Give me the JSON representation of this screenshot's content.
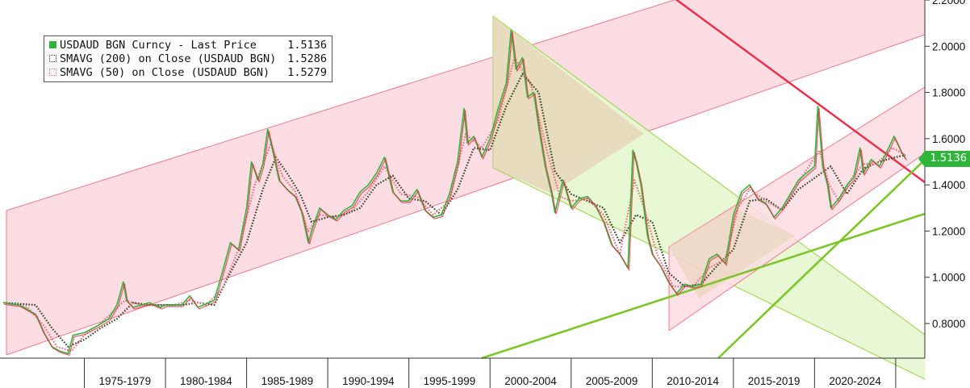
{
  "chart_data": {
    "type": "line",
    "title": "",
    "xlabel": "",
    "ylabel": "",
    "x_range": [
      1970.0,
      2026.0
    ],
    "ylim": [
      0.65,
      2.2
    ],
    "y_ticks": [
      2.2,
      2.0,
      1.8,
      1.6,
      1.4,
      1.2,
      1.0,
      0.8
    ],
    "y_tick_labels": [
      "2.2000",
      "2.0000",
      "1.8000",
      "1.6000",
      "1.4000",
      "1.2000",
      "1.0000",
      "0.8000"
    ],
    "x_tick_labels": [
      "1975-1979",
      "1980-1984",
      "1985-1989",
      "1990-1994",
      "1995-1999",
      "2000-2004",
      "2005-2009",
      "2010-2014",
      "2015-2019",
      "2020-2024"
    ],
    "x_tick_starts": [
      1975,
      1980,
      1985,
      1990,
      1995,
      2000,
      2005,
      2010,
      2015,
      2020,
      2025
    ],
    "grid": false,
    "legend_position": "top-left",
    "series": [
      {
        "name": "USDAUD BGN Curncy - Last Price",
        "last_value": "1.5136",
        "color": "#2fb53a",
        "points": [
          [
            1970.0,
            0.89
          ],
          [
            1971.0,
            0.88
          ],
          [
            1972.0,
            0.84
          ],
          [
            1972.5,
            0.76
          ],
          [
            1973.0,
            0.7
          ],
          [
            1973.5,
            0.68
          ],
          [
            1974.0,
            0.67
          ],
          [
            1974.3,
            0.75
          ],
          [
            1975.0,
            0.76
          ],
          [
            1975.8,
            0.79
          ],
          [
            1976.5,
            0.82
          ],
          [
            1977.0,
            0.88
          ],
          [
            1977.4,
            0.98
          ],
          [
            1977.6,
            0.9
          ],
          [
            1978.0,
            0.87
          ],
          [
            1979.0,
            0.89
          ],
          [
            1979.7,
            0.87
          ],
          [
            1980.0,
            0.88
          ],
          [
            1981.0,
            0.88
          ],
          [
            1981.5,
            0.92
          ],
          [
            1982.0,
            0.87
          ],
          [
            1983.0,
            0.9
          ],
          [
            1983.5,
            1.02
          ],
          [
            1984.0,
            1.15
          ],
          [
            1984.5,
            1.12
          ],
          [
            1985.0,
            1.3
          ],
          [
            1985.3,
            1.5
          ],
          [
            1985.7,
            1.42
          ],
          [
            1986.0,
            1.49
          ],
          [
            1986.3,
            1.64
          ],
          [
            1986.6,
            1.55
          ],
          [
            1987.0,
            1.42
          ],
          [
            1987.5,
            1.38
          ],
          [
            1988.0,
            1.35
          ],
          [
            1988.4,
            1.28
          ],
          [
            1988.8,
            1.15
          ],
          [
            1989.0,
            1.2
          ],
          [
            1989.5,
            1.3
          ],
          [
            1990.0,
            1.27
          ],
          [
            1990.5,
            1.25
          ],
          [
            1991.0,
            1.29
          ],
          [
            1991.5,
            1.31
          ],
          [
            1992.0,
            1.37
          ],
          [
            1992.5,
            1.4
          ],
          [
            1993.0,
            1.45
          ],
          [
            1993.5,
            1.52
          ],
          [
            1994.0,
            1.37
          ],
          [
            1994.5,
            1.33
          ],
          [
            1995.0,
            1.33
          ],
          [
            1995.5,
            1.38
          ],
          [
            1996.0,
            1.29
          ],
          [
            1996.5,
            1.26
          ],
          [
            1997.0,
            1.27
          ],
          [
            1997.5,
            1.36
          ],
          [
            1998.0,
            1.5
          ],
          [
            1998.4,
            1.73
          ],
          [
            1998.6,
            1.58
          ],
          [
            1999.0,
            1.61
          ],
          [
            1999.5,
            1.52
          ],
          [
            2000.0,
            1.6
          ],
          [
            2000.5,
            1.73
          ],
          [
            2001.0,
            1.84
          ],
          [
            2001.3,
            2.07
          ],
          [
            2001.6,
            1.9
          ],
          [
            2002.0,
            1.95
          ],
          [
            2002.3,
            1.78
          ],
          [
            2002.7,
            1.8
          ],
          [
            2003.0,
            1.65
          ],
          [
            2003.4,
            1.48
          ],
          [
            2003.8,
            1.36
          ],
          [
            2004.0,
            1.28
          ],
          [
            2004.5,
            1.42
          ],
          [
            2005.0,
            1.3
          ],
          [
            2005.5,
            1.34
          ],
          [
            2006.0,
            1.35
          ],
          [
            2006.5,
            1.31
          ],
          [
            2007.0,
            1.24
          ],
          [
            2007.5,
            1.14
          ],
          [
            2008.0,
            1.1
          ],
          [
            2008.5,
            1.04
          ],
          [
            2008.8,
            1.55
          ],
          [
            2009.0,
            1.5
          ],
          [
            2009.3,
            1.4
          ],
          [
            2009.7,
            1.18
          ],
          [
            2010.0,
            1.1
          ],
          [
            2010.5,
            1.05
          ],
          [
            2011.0,
            0.98
          ],
          [
            2011.5,
            0.93
          ],
          [
            2012.0,
            0.97
          ],
          [
            2012.5,
            0.96
          ],
          [
            2013.0,
            0.97
          ],
          [
            2013.5,
            1.08
          ],
          [
            2014.0,
            1.1
          ],
          [
            2014.5,
            1.06
          ],
          [
            2015.0,
            1.27
          ],
          [
            2015.5,
            1.37
          ],
          [
            2016.0,
            1.4
          ],
          [
            2016.5,
            1.34
          ],
          [
            2017.0,
            1.32
          ],
          [
            2017.5,
            1.26
          ],
          [
            2018.0,
            1.3
          ],
          [
            2018.5,
            1.36
          ],
          [
            2019.0,
            1.42
          ],
          [
            2019.5,
            1.45
          ],
          [
            2020.0,
            1.48
          ],
          [
            2020.2,
            1.74
          ],
          [
            2020.5,
            1.48
          ],
          [
            2020.8,
            1.4
          ],
          [
            2021.0,
            1.3
          ],
          [
            2021.5,
            1.34
          ],
          [
            2022.0,
            1.4
          ],
          [
            2022.4,
            1.43
          ],
          [
            2022.8,
            1.56
          ],
          [
            2023.0,
            1.45
          ],
          [
            2023.5,
            1.51
          ],
          [
            2024.0,
            1.48
          ],
          [
            2024.5,
            1.55
          ],
          [
            2024.9,
            1.61
          ],
          [
            2025.3,
            1.55
          ],
          [
            2025.6,
            1.5136
          ]
        ]
      },
      {
        "name": "SMAVG (200)  on Close (USDAUD BGN)",
        "last_value": "1.5286",
        "color": "#2a3a1a",
        "points": [
          [
            1970.0,
            0.89
          ],
          [
            1972.0,
            0.88
          ],
          [
            1973.0,
            0.78
          ],
          [
            1974.0,
            0.7
          ],
          [
            1975.0,
            0.73
          ],
          [
            1976.0,
            0.78
          ],
          [
            1977.0,
            0.82
          ],
          [
            1978.0,
            0.89
          ],
          [
            1979.0,
            0.88
          ],
          [
            1980.0,
            0.88
          ],
          [
            1981.0,
            0.88
          ],
          [
            1982.0,
            0.89
          ],
          [
            1983.0,
            0.88
          ],
          [
            1984.0,
            1.02
          ],
          [
            1985.0,
            1.15
          ],
          [
            1986.0,
            1.38
          ],
          [
            1986.8,
            1.52
          ],
          [
            1987.5,
            1.45
          ],
          [
            1988.3,
            1.36
          ],
          [
            1989.0,
            1.24
          ],
          [
            1990.0,
            1.26
          ],
          [
            1991.0,
            1.27
          ],
          [
            1992.0,
            1.3
          ],
          [
            1993.0,
            1.4
          ],
          [
            1994.0,
            1.44
          ],
          [
            1995.0,
            1.34
          ],
          [
            1996.0,
            1.33
          ],
          [
            1997.0,
            1.27
          ],
          [
            1998.0,
            1.38
          ],
          [
            1999.0,
            1.56
          ],
          [
            2000.0,
            1.55
          ],
          [
            2001.0,
            1.74
          ],
          [
            2002.0,
            1.88
          ],
          [
            2003.0,
            1.8
          ],
          [
            2004.0,
            1.46
          ],
          [
            2005.0,
            1.36
          ],
          [
            2006.0,
            1.33
          ],
          [
            2007.0,
            1.3
          ],
          [
            2008.0,
            1.15
          ],
          [
            2009.0,
            1.27
          ],
          [
            2010.0,
            1.24
          ],
          [
            2011.0,
            1.02
          ],
          [
            2012.0,
            0.96
          ],
          [
            2013.0,
            0.97
          ],
          [
            2014.0,
            1.05
          ],
          [
            2015.0,
            1.12
          ],
          [
            2016.0,
            1.33
          ],
          [
            2017.0,
            1.34
          ],
          [
            2018.0,
            1.29
          ],
          [
            2019.0,
            1.38
          ],
          [
            2020.0,
            1.43
          ],
          [
            2021.0,
            1.48
          ],
          [
            2022.0,
            1.36
          ],
          [
            2023.0,
            1.47
          ],
          [
            2024.0,
            1.5
          ],
          [
            2025.0,
            1.52
          ],
          [
            2025.6,
            1.5286
          ]
        ]
      },
      {
        "name": "SMAVG (50)  on Close (USDAUD BGN)",
        "last_value": "1.5279",
        "color": "#e26a7a",
        "points": [
          [
            1970.0,
            0.89
          ],
          [
            1971.5,
            0.87
          ],
          [
            1972.5,
            0.79
          ],
          [
            1973.3,
            0.7
          ],
          [
            1974.2,
            0.68
          ],
          [
            1975.0,
            0.75
          ],
          [
            1976.0,
            0.8
          ],
          [
            1977.5,
            0.9
          ],
          [
            1978.5,
            0.88
          ],
          [
            1979.5,
            0.88
          ],
          [
            1980.5,
            0.88
          ],
          [
            1981.5,
            0.9
          ],
          [
            1982.5,
            0.88
          ],
          [
            1983.5,
            0.95
          ],
          [
            1984.5,
            1.12
          ],
          [
            1985.5,
            1.4
          ],
          [
            1986.5,
            1.58
          ],
          [
            1987.2,
            1.44
          ],
          [
            1988.0,
            1.37
          ],
          [
            1988.8,
            1.2
          ],
          [
            1989.5,
            1.27
          ],
          [
            1990.5,
            1.26
          ],
          [
            1991.5,
            1.29
          ],
          [
            1992.5,
            1.37
          ],
          [
            1993.5,
            1.48
          ],
          [
            1994.5,
            1.36
          ],
          [
            1995.5,
            1.35
          ],
          [
            1996.5,
            1.27
          ],
          [
            1997.5,
            1.33
          ],
          [
            1998.5,
            1.62
          ],
          [
            1999.5,
            1.56
          ],
          [
            2000.5,
            1.68
          ],
          [
            2001.5,
            1.95
          ],
          [
            2002.5,
            1.84
          ],
          [
            2003.5,
            1.55
          ],
          [
            2004.3,
            1.35
          ],
          [
            2005.0,
            1.33
          ],
          [
            2006.0,
            1.34
          ],
          [
            2007.0,
            1.27
          ],
          [
            2008.0,
            1.1
          ],
          [
            2008.9,
            1.42
          ],
          [
            2009.5,
            1.3
          ],
          [
            2010.3,
            1.1
          ],
          [
            2011.3,
            0.96
          ],
          [
            2012.5,
            0.96
          ],
          [
            2013.5,
            1.04
          ],
          [
            2014.5,
            1.08
          ],
          [
            2015.3,
            1.3
          ],
          [
            2016.0,
            1.38
          ],
          [
            2017.0,
            1.33
          ],
          [
            2018.0,
            1.29
          ],
          [
            2019.0,
            1.41
          ],
          [
            2020.3,
            1.55
          ],
          [
            2020.9,
            1.4
          ],
          [
            2021.5,
            1.33
          ],
          [
            2022.3,
            1.43
          ],
          [
            2023.0,
            1.49
          ],
          [
            2023.8,
            1.49
          ],
          [
            2024.8,
            1.56
          ],
          [
            2025.6,
            1.5279
          ]
        ]
      }
    ],
    "price_tag": "1.5136"
  },
  "legend": {
    "rows": [
      {
        "label": "USDAUD BGN Curncy - Last Price",
        "value": "1.5136"
      },
      {
        "label": "SMAVG (200)  on Close (USDAUD BGN)",
        "value": "1.5286"
      },
      {
        "label": "SMAVG (50)  on Close (USDAUD BGN)",
        "value": "1.5279"
      }
    ]
  },
  "colors": {
    "channel_pink_fill": "#fbdde3",
    "channel_pink_line": "#f07a8e",
    "channel_green_fill": "#e6f7d0",
    "channel_green_line": "#9ccf45",
    "trend_red": "#ee2a4a",
    "trend_green": "#7cc62a",
    "axis": "#333333"
  }
}
